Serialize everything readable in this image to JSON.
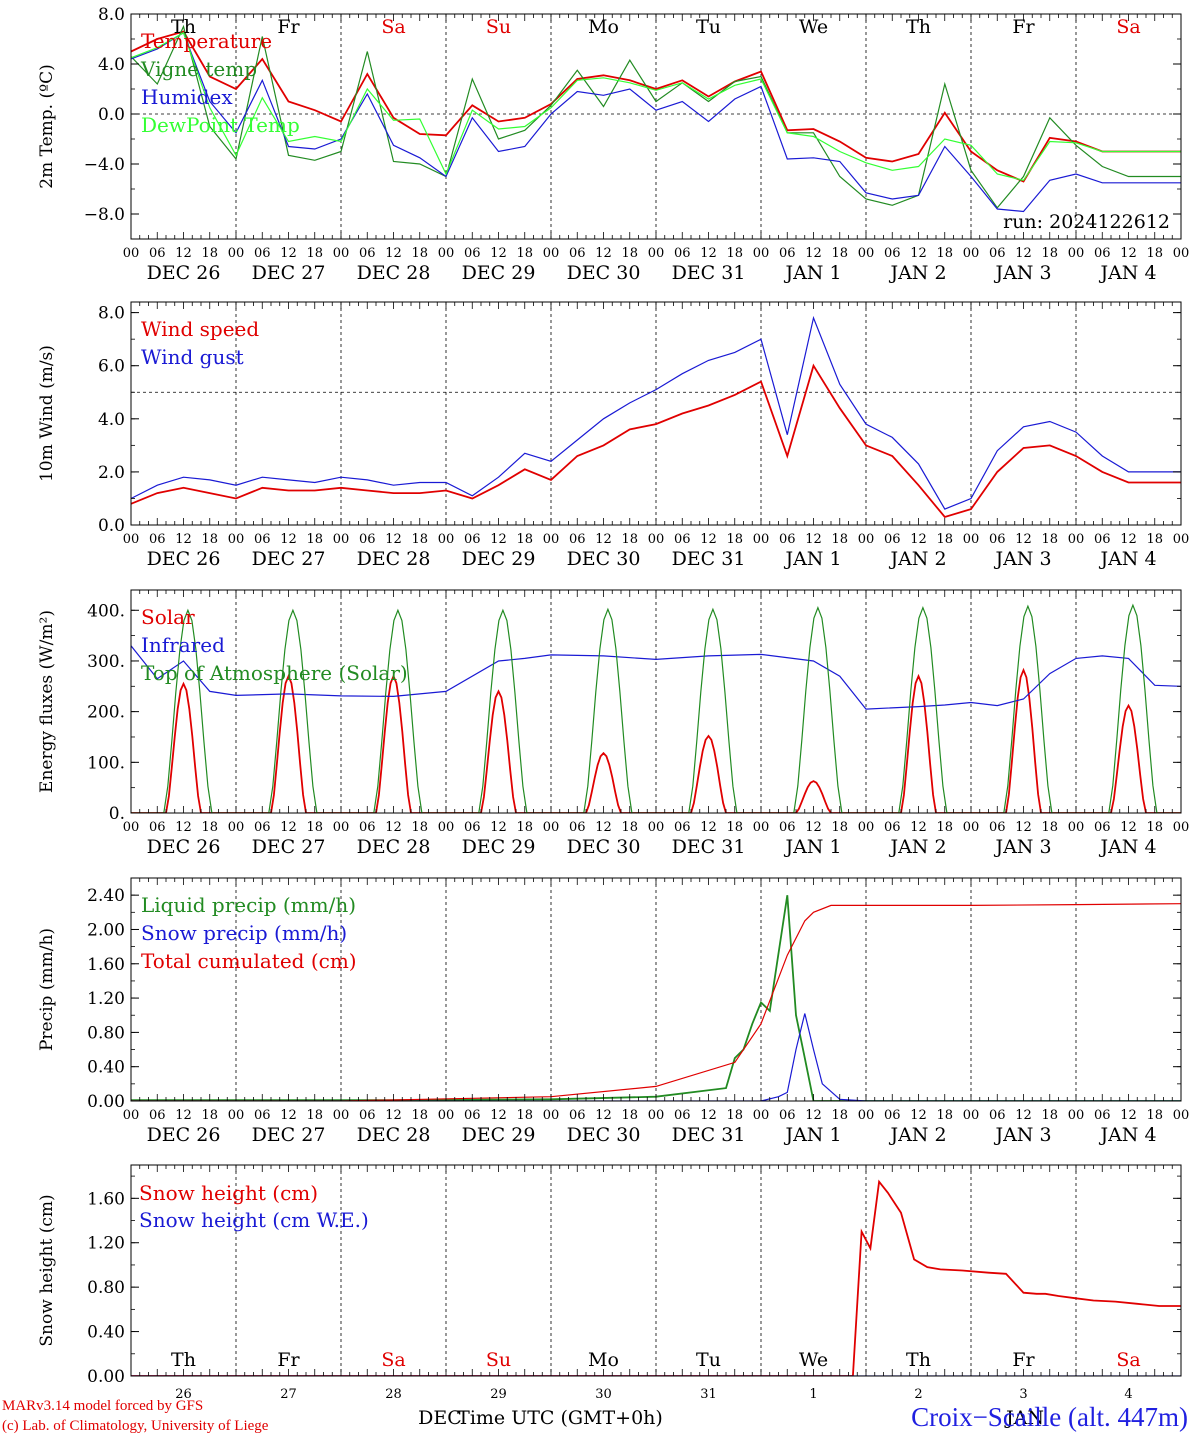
{
  "hours": [
    "00",
    "06",
    "12",
    "18"
  ],
  "date_labels": [
    "DEC 26",
    "DEC 27",
    "DEC 28",
    "DEC 29",
    "DEC 30",
    "DEC 31",
    "JAN  1",
    "JAN  2",
    "JAN  3",
    "JAN  4"
  ],
  "weekdays": [
    {
      "label": "Th",
      "color": "#000000"
    },
    {
      "label": "Fr",
      "color": "#000000"
    },
    {
      "label": "Sa",
      "color": "#e00000"
    },
    {
      "label": "Su",
      "color": "#e00000"
    },
    {
      "label": "Mo",
      "color": "#000000"
    },
    {
      "label": "Tu",
      "color": "#000000"
    },
    {
      "label": "We",
      "color": "#000000"
    },
    {
      "label": "Th",
      "color": "#000000"
    },
    {
      "label": "Fr",
      "color": "#000000"
    },
    {
      "label": "Sa",
      "color": "#e00000"
    }
  ],
  "bottom_days": [
    "26",
    "27",
    "28",
    "29",
    "30",
    "31",
    "1",
    "2",
    "3",
    "4"
  ],
  "bottom_month_labels": [
    "DEC",
    "JAN"
  ],
  "x_axis_title": "Time UTC (GMT+0h)",
  "run_label": "run: 2024122612",
  "credit_line1": "MARv3.14 model forced by GFS",
  "credit_line2": "(c) Lab. of Climatology, University of Liege",
  "location": "Croix−Scaille (alt. 447m)",
  "chart_data": [
    {
      "type": "line",
      "ylabel": "2m Temp. (ºC)",
      "ylim": [
        -10.0,
        8.0
      ],
      "yticks": [
        8.0,
        4.0,
        0.0,
        -4.0,
        -8.0
      ],
      "ytick_labels": [
        "8.0",
        "4.0",
        "0.0",
        "−4.0",
        "−8.0"
      ],
      "ref_line": 0.0,
      "series": [
        {
          "name": "Temperature",
          "color": "#e00000",
          "x": [
            0,
            6,
            12,
            18,
            24,
            30,
            36,
            42,
            48,
            54,
            60,
            66,
            72,
            78,
            84,
            90,
            96,
            102,
            108,
            114,
            120,
            126,
            132,
            138,
            144,
            150,
            156,
            162,
            168,
            174,
            180,
            186,
            192,
            198,
            204,
            210,
            216,
            222,
            228,
            234,
            240
          ],
          "y": [
            5.0,
            6.0,
            6.6,
            3.0,
            2.0,
            4.4,
            1.0,
            0.3,
            -0.6,
            3.2,
            -0.3,
            -1.6,
            -1.7,
            0.7,
            -0.6,
            -0.3,
            0.8,
            2.8,
            3.1,
            2.7,
            2.0,
            2.7,
            1.4,
            2.6,
            3.4,
            -1.3,
            -1.2,
            -2.2,
            -3.5,
            -3.8,
            -3.2,
            0.1,
            -3.0,
            -4.5,
            -5.4,
            -1.9,
            -2.2,
            -3.0,
            -3.0,
            -3.0,
            -3.0
          ]
        },
        {
          "name": "Vigne temp",
          "color": "#228b22",
          "x": [
            0,
            6,
            12,
            18,
            24,
            30,
            36,
            42,
            48,
            54,
            60,
            66,
            72,
            78,
            84,
            90,
            96,
            102,
            108,
            114,
            120,
            126,
            132,
            138,
            144,
            150,
            156,
            162,
            168,
            174,
            180,
            186,
            192,
            198,
            204,
            210,
            216,
            222,
            228,
            234,
            240
          ],
          "y": [
            4.6,
            2.4,
            7.0,
            -1.0,
            -3.6,
            6.2,
            -3.3,
            -3.7,
            -3.0,
            5.0,
            -3.8,
            -4.0,
            -5.0,
            2.8,
            -2.0,
            -1.3,
            0.7,
            3.5,
            0.6,
            4.3,
            1.0,
            2.5,
            1.0,
            2.6,
            3.0,
            -1.5,
            -1.5,
            -5.0,
            -6.8,
            -7.3,
            -6.5,
            2.4,
            -4.5,
            -7.5,
            -5.0,
            -0.3,
            -2.5,
            -4.2,
            -5.0,
            -5.0,
            -5.0
          ]
        },
        {
          "name": "Humidex",
          "color": "#1a1ad4",
          "x": [
            0,
            6,
            12,
            18,
            24,
            30,
            36,
            42,
            48,
            54,
            60,
            66,
            72,
            78,
            84,
            90,
            96,
            102,
            108,
            114,
            120,
            126,
            132,
            138,
            144,
            150,
            156,
            162,
            168,
            174,
            180,
            186,
            192,
            198,
            204,
            210,
            216,
            222,
            228,
            234,
            240
          ],
          "y": [
            4.4,
            5.2,
            6.5,
            1.0,
            -1.5,
            2.7,
            -2.6,
            -2.8,
            -2.0,
            1.6,
            -2.5,
            -3.5,
            -5.0,
            -0.3,
            -3.0,
            -2.6,
            0.0,
            1.8,
            1.5,
            2.0,
            0.3,
            1.0,
            -0.6,
            1.2,
            2.2,
            -3.6,
            -3.5,
            -3.8,
            -6.3,
            -6.8,
            -6.5,
            -2.6,
            -5.0,
            -7.6,
            -7.8,
            -5.3,
            -4.8,
            -5.5,
            -5.5,
            -5.5,
            -5.5
          ]
        },
        {
          "name": "DewPoint Temp",
          "color": "#33ff33",
          "x": [
            0,
            6,
            12,
            18,
            24,
            30,
            36,
            42,
            48,
            54,
            60,
            66,
            72,
            78,
            84,
            90,
            96,
            102,
            108,
            114,
            120,
            126,
            132,
            138,
            144,
            150,
            156,
            162,
            168,
            174,
            180,
            186,
            192,
            198,
            204,
            210,
            216,
            222,
            228,
            234,
            240
          ],
          "y": [
            4.5,
            5.3,
            6.5,
            0.5,
            -3.3,
            1.3,
            -2.2,
            -1.8,
            -2.2,
            2.0,
            -0.5,
            -0.4,
            -4.8,
            0.3,
            -1.2,
            -1.0,
            0.5,
            2.7,
            2.9,
            2.5,
            1.9,
            2.5,
            1.2,
            2.3,
            2.8,
            -1.5,
            -1.8,
            -3.0,
            -3.9,
            -4.5,
            -4.2,
            -2.0,
            -2.5,
            -4.8,
            -5.3,
            -2.2,
            -2.3,
            -3.0,
            -3.0,
            -3.0,
            -3.0
          ]
        }
      ],
      "legend": "top-left"
    },
    {
      "type": "line",
      "ylabel": "10m Wind (m/s)",
      "ylim": [
        0.0,
        8.4
      ],
      "yticks": [
        0.0,
        2.0,
        4.0,
        6.0,
        8.0
      ],
      "ytick_labels": [
        "0.0",
        "2.0",
        "4.0",
        "6.0",
        "8.0"
      ],
      "ref_line": 5.0,
      "series": [
        {
          "name": "Wind speed",
          "color": "#e00000",
          "x": [
            0,
            6,
            12,
            18,
            24,
            30,
            36,
            42,
            48,
            54,
            60,
            66,
            72,
            78,
            84,
            90,
            96,
            102,
            108,
            114,
            120,
            126,
            132,
            138,
            144,
            150,
            156,
            162,
            168,
            174,
            180,
            186,
            192,
            198,
            204,
            210,
            216,
            222,
            228,
            234,
            240
          ],
          "y": [
            0.8,
            1.2,
            1.4,
            1.2,
            1.0,
            1.4,
            1.3,
            1.3,
            1.4,
            1.3,
            1.2,
            1.2,
            1.3,
            1.0,
            1.5,
            2.1,
            1.7,
            2.6,
            3.0,
            3.6,
            3.8,
            4.2,
            4.5,
            4.9,
            5.4,
            2.6,
            6.0,
            4.4,
            3.0,
            2.6,
            1.5,
            0.3,
            0.6,
            2.0,
            2.9,
            3.0,
            2.6,
            2.0,
            1.6,
            1.6,
            1.6
          ]
        },
        {
          "name": "Wind gust",
          "color": "#1a1ad4",
          "x": [
            0,
            6,
            12,
            18,
            24,
            30,
            36,
            42,
            48,
            54,
            60,
            66,
            72,
            78,
            84,
            90,
            96,
            102,
            108,
            114,
            120,
            126,
            132,
            138,
            144,
            150,
            156,
            162,
            168,
            174,
            180,
            186,
            192,
            198,
            204,
            210,
            216,
            222,
            228,
            234,
            240
          ],
          "y": [
            1.0,
            1.5,
            1.8,
            1.7,
            1.5,
            1.8,
            1.7,
            1.6,
            1.8,
            1.7,
            1.5,
            1.6,
            1.6,
            1.1,
            1.8,
            2.7,
            2.4,
            3.2,
            4.0,
            4.6,
            5.1,
            5.7,
            6.2,
            6.5,
            7.0,
            3.4,
            7.8,
            5.3,
            3.8,
            3.3,
            2.3,
            0.6,
            1.0,
            2.8,
            3.7,
            3.9,
            3.5,
            2.6,
            2.0,
            2.0,
            2.0
          ]
        }
      ],
      "legend": "top-left"
    },
    {
      "type": "line",
      "ylabel": "Energy fluxes (W/m²)",
      "ylim": [
        0,
        440
      ],
      "yticks": [
        0,
        100,
        200,
        300,
        400
      ],
      "ytick_labels": [
        "0.",
        "100.",
        "200.",
        "300.",
        "400."
      ],
      "series": [
        {
          "name": "Solar",
          "color": "#e00000",
          "peak_hour": 12,
          "peaks": [
            255,
            270,
            270,
            240,
            118,
            152,
            63,
            270,
            282,
            212
          ]
        },
        {
          "name": "Infrared",
          "color": "#1a1ad4",
          "x": [
            0,
            6,
            12,
            18,
            24,
            36,
            48,
            60,
            72,
            84,
            90,
            96,
            108,
            120,
            132,
            144,
            156,
            162,
            168,
            180,
            186,
            192,
            198,
            204,
            210,
            216,
            222,
            228,
            234,
            240
          ],
          "y": [
            330,
            265,
            300,
            240,
            232,
            235,
            231,
            230,
            240,
            300,
            305,
            312,
            310,
            303,
            310,
            313,
            300,
            270,
            205,
            210,
            213,
            218,
            212,
            225,
            275,
            305,
            310,
            305,
            252,
            250
          ]
        },
        {
          "name": "Top of Atmosphere (Solar)",
          "color": "#228b22",
          "peak_hour": 13,
          "peaks": [
            400,
            400,
            400,
            400,
            402,
            402,
            405,
            405,
            408,
            410
          ]
        }
      ],
      "legend": "top-left"
    },
    {
      "type": "line",
      "ylabel": "Precip (mm/h)",
      "ylim": [
        0.0,
        2.6
      ],
      "yticks": [
        0.0,
        0.4,
        0.8,
        1.2,
        1.6,
        2.0,
        2.4
      ],
      "ytick_labels": [
        "0.00",
        "0.40",
        "0.80",
        "1.20",
        "1.60",
        "2.00",
        "2.40"
      ],
      "series": [
        {
          "name": "Liquid precip (mm/h)",
          "color": "#228b22",
          "x": [
            0,
            60,
            96,
            120,
            136,
            138,
            140,
            142,
            144,
            146,
            150,
            152,
            154,
            156,
            168,
            240
          ],
          "y": [
            0.01,
            0.01,
            0.02,
            0.05,
            0.15,
            0.5,
            0.6,
            0.9,
            1.15,
            1.05,
            2.4,
            1.0,
            0.5,
            0.0,
            0.0,
            0.0
          ]
        },
        {
          "name": "Snow precip (mm/h)",
          "color": "#1a1ad4",
          "x": [
            0,
            144,
            148,
            150,
            152,
            154,
            156,
            158,
            162,
            168,
            240
          ],
          "y": [
            0.0,
            0.0,
            0.05,
            0.1,
            0.6,
            1.02,
            0.6,
            0.2,
            0.02,
            0.0,
            0.0
          ]
        },
        {
          "name": "Total cumulated (cm)",
          "color": "#e00000",
          "x": [
            0,
            48,
            96,
            120,
            138,
            144,
            150,
            154,
            156,
            160,
            168,
            192,
            216,
            240
          ],
          "y": [
            0.0,
            0.0,
            0.05,
            0.17,
            0.45,
            0.9,
            1.7,
            2.1,
            2.2,
            2.28,
            2.28,
            2.28,
            2.29,
            2.3
          ]
        }
      ],
      "legend": "top-left"
    },
    {
      "type": "line",
      "ylabel": "Snow height (cm)",
      "ylim": [
        0.0,
        1.9
      ],
      "yticks": [
        0.0,
        0.4,
        0.8,
        1.2,
        1.6
      ],
      "ytick_labels": [
        "0.00",
        "0.40",
        "0.80",
        "1.20",
        "1.60"
      ],
      "series": [
        {
          "name": "Snow height (cm)",
          "color": "#e00000",
          "x": [
            0,
            165,
            167,
            169,
            171,
            173,
            176,
            179,
            182,
            185,
            190,
            196,
            200,
            204,
            207,
            209,
            212,
            216,
            220,
            225,
            230,
            235,
            240
          ],
          "y": [
            0.0,
            0.0,
            1.3,
            1.15,
            1.75,
            1.65,
            1.47,
            1.05,
            0.98,
            0.96,
            0.95,
            0.93,
            0.92,
            0.75,
            0.74,
            0.74,
            0.72,
            0.7,
            0.68,
            0.67,
            0.65,
            0.63,
            0.63
          ]
        },
        {
          "name": "Snow height (cm W.E.)",
          "color": "#1a1ad4",
          "x": [
            0,
            240
          ],
          "y": [
            0.0,
            0.0
          ]
        }
      ],
      "legend": "top-left"
    }
  ]
}
